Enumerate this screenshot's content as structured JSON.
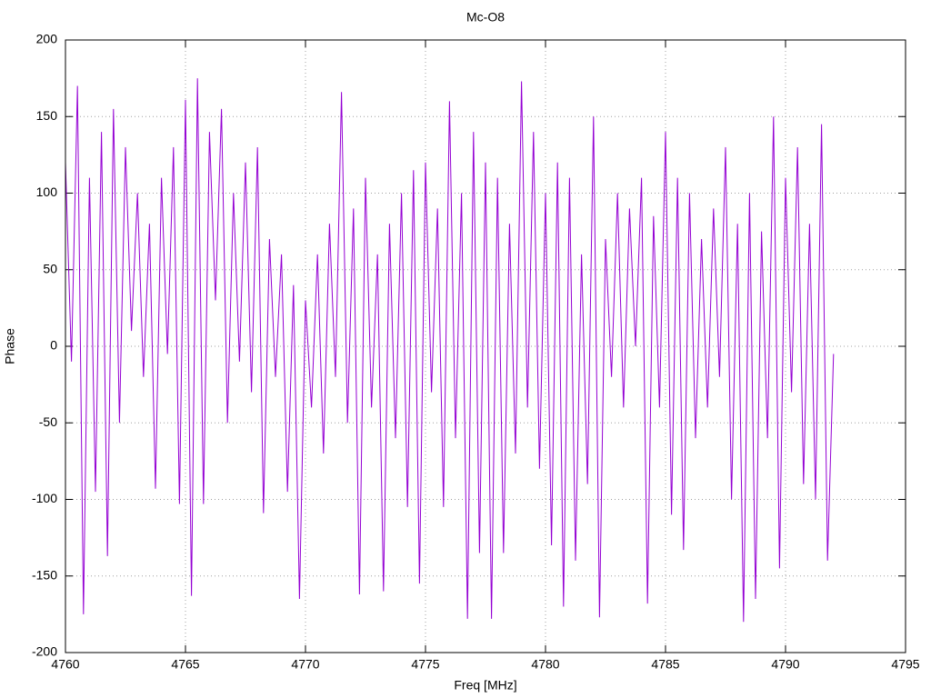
{
  "chart_data": {
    "type": "line",
    "title": "Mc-O8",
    "x_label": "Freq [MHz]",
    "y_label": "Phase",
    "xlim": [
      4760,
      4795
    ],
    "xticks": [
      4760,
      4765,
      4770,
      4775,
      4780,
      4785,
      4790,
      4795
    ],
    "ylim": [
      -200,
      200
    ],
    "yticks": [
      -200,
      -150,
      -100,
      -50,
      0,
      50,
      100,
      150,
      200
    ],
    "grid": true,
    "x": [
      4760,
      4760.25,
      4760.5,
      4760.75,
      4761,
      4761.25,
      4761.5,
      4761.75,
      4762,
      4762.25,
      4762.5,
      4762.75,
      4763,
      4763.25,
      4763.5,
      4763.75,
      4764,
      4764.25,
      4764.5,
      4764.75,
      4765,
      4765.25,
      4765.5,
      4765.75,
      4766,
      4766.25,
      4766.5,
      4766.75,
      4767,
      4767.25,
      4767.5,
      4767.75,
      4768,
      4768.25,
      4768.5,
      4768.75,
      4769,
      4769.25,
      4769.5,
      4769.75,
      4770,
      4770.25,
      4770.5,
      4770.75,
      4771,
      4771.25,
      4771.5,
      4771.75,
      4772,
      4772.25,
      4772.5,
      4772.75,
      4773,
      4773.25,
      4773.5,
      4773.75,
      4774,
      4774.25,
      4774.5,
      4774.75,
      4775,
      4775.25,
      4775.5,
      4775.75,
      4776,
      4776.25,
      4776.5,
      4776.75,
      4777,
      4777.25,
      4777.5,
      4777.75,
      4778,
      4778.25,
      4778.5,
      4778.75,
      4779,
      4779.25,
      4779.5,
      4779.75,
      4780,
      4780.25,
      4780.5,
      4780.75,
      4781,
      4781.25,
      4781.5,
      4781.75,
      4782,
      4782.25,
      4782.5,
      4782.75,
      4783,
      4783.25,
      4783.5,
      4783.75,
      4784,
      4784.25,
      4784.5,
      4784.75,
      4785,
      4785.25,
      4785.5,
      4785.75,
      4786,
      4786.25,
      4786.5,
      4786.75,
      4787,
      4787.25,
      4787.5,
      4787.75,
      4788,
      4788.25,
      4788.5,
      4788.75,
      4789,
      4789.25,
      4789.5,
      4789.75,
      4790,
      4790.25,
      4790.5,
      4790.75,
      4791,
      4791.25,
      4791.5,
      4791.75,
      4792
    ],
    "series": [
      {
        "color": "#9400d3",
        "values": [
          120,
          -10,
          170,
          -175,
          110,
          -95,
          140,
          -137,
          155,
          -50,
          130,
          10,
          100,
          -20,
          80,
          -93,
          110,
          -5,
          130,
          -103,
          161,
          -163,
          175,
          -103,
          140,
          30,
          155,
          -50,
          100,
          -10,
          120,
          -30,
          130,
          -109,
          70,
          -20,
          60,
          -95,
          40,
          -165,
          30,
          -40,
          60,
          -70,
          80,
          -20,
          166,
          -50,
          90,
          -162,
          110,
          -40,
          60,
          -160,
          80,
          -60,
          100,
          -105,
          115,
          -155,
          120,
          -30,
          90,
          -105,
          160,
          -60,
          100,
          -178,
          140,
          -135,
          120,
          -178,
          110,
          -135,
          80,
          -70,
          173,
          -40,
          140,
          -80,
          100,
          -130,
          120,
          -170,
          110,
          -140,
          60,
          -90,
          150,
          -177,
          70,
          -20,
          100,
          -40,
          90,
          0,
          110,
          -168,
          85,
          -40,
          140,
          -110,
          110,
          -133,
          100,
          -60,
          70,
          -40,
          90,
          -20,
          130,
          -100,
          80,
          -180,
          100,
          -165,
          75,
          -60,
          150,
          -145,
          110,
          -30,
          130,
          -90,
          80,
          -100,
          145,
          -140,
          -5
        ]
      }
    ]
  }
}
